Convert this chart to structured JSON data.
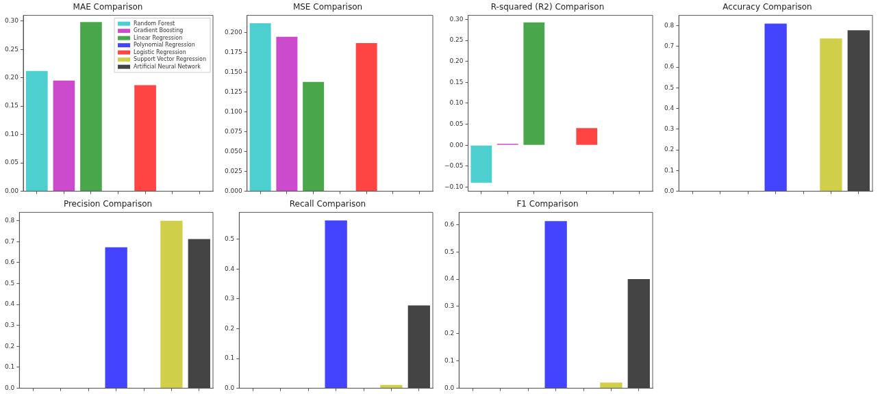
{
  "chart_data": [
    {
      "type": "bar",
      "title": "MAE Comparison",
      "categories": [
        null,
        null,
        null,
        null,
        null,
        null,
        null
      ],
      "legend": "top right",
      "tick_labels": "y",
      "ylim": [
        0,
        0.31
      ],
      "yticks": [
        {
          "value": 0,
          "label": "0.00"
        },
        0.05,
        {
          "value": 0.1,
          "label": "0.10"
        },
        0.15,
        {
          "value": 0.2,
          "label": "0.20"
        },
        0.25,
        {
          "value": 0.3,
          "label": "0.30"
        }
      ],
      "series": [
        {
          "name": "Random Forest",
          "color": "#4dcfcf",
          "values": [
            0.212,
            null,
            null,
            null,
            null,
            null,
            null
          ]
        },
        {
          "name": "Gradient Boosting",
          "color": "#cc4bcc",
          "values": [
            null,
            0.195,
            null,
            null,
            null,
            null,
            null
          ]
        },
        {
          "name": "Linear Regression",
          "color": "#4aa64a",
          "values": [
            null,
            null,
            0.298,
            null,
            null,
            null,
            null
          ]
        },
        {
          "name": "Polynomial Regression",
          "color": "#4444ff",
          "values": [
            null,
            null,
            null,
            null,
            null,
            null,
            null
          ]
        },
        {
          "name": "Logistic Regression",
          "color": "#ff4444",
          "values": [
            null,
            null,
            null,
            null,
            0.187,
            null,
            null
          ]
        },
        {
          "name": "Support Vector Regression",
          "color": "#d0cf4a",
          "values": [
            null,
            null,
            null,
            null,
            null,
            null,
            null
          ]
        },
        {
          "name": "Artificial Neural Network",
          "color": "#444444",
          "values": [
            null,
            null,
            null,
            null,
            null,
            null,
            null
          ]
        }
      ]
    },
    {
      "type": "bar",
      "title": "MSE Comparison",
      "categories": [
        null,
        null,
        null,
        null,
        null,
        null,
        null
      ],
      "tick_labels": "y",
      "ylim": [
        0,
        0.222
      ],
      "yticks": [
        {
          "value": 0,
          "label": "0.000"
        },
        0.025,
        {
          "value": 0.05,
          "label": "0.050"
        },
        0.075,
        {
          "value": 0.1,
          "label": "0.100"
        },
        0.125,
        {
          "value": 0.15,
          "label": "0.150"
        },
        0.175,
        {
          "value": 0.2,
          "label": "0.200"
        }
      ],
      "values": [
        0.212,
        0.195,
        0.138,
        null,
        0.187,
        null,
        null
      ],
      "colors": [
        "#4dcfcf",
        "#cc4bcc",
        "#4aa64a",
        "#4444ff",
        "#ff4444",
        "#d0cf4a",
        "#444444"
      ]
    },
    {
      "type": "bar",
      "title": "R-squared (R2) Comparison",
      "categories": [
        null,
        null,
        null,
        null,
        null,
        null,
        null
      ],
      "tick_labels": "y",
      "ylim": [
        -0.11,
        0.31
      ],
      "yticks": [
        {
          "value": -0.1,
          "label": "−0.10"
        },
        {
          "value": -0.05,
          "label": "−0.05"
        },
        {
          "value": 0,
          "label": "0.00"
        },
        0.05,
        {
          "value": 0.1,
          "label": "0.10"
        },
        0.15,
        {
          "value": 0.2,
          "label": "0.20"
        },
        0.25,
        {
          "value": 0.3,
          "label": "0.30"
        }
      ],
      "values": [
        -0.09,
        0.001,
        0.293,
        null,
        0.041,
        null,
        null
      ],
      "colors": [
        "#4dcfcf",
        "#cc4bcc",
        "#4aa64a",
        "#4444ff",
        "#ff4444",
        "#d0cf4a",
        "#444444"
      ]
    },
    {
      "type": "bar",
      "title": "Accuracy Comparison",
      "categories": [
        null,
        null,
        null,
        null,
        null,
        null,
        null
      ],
      "tick_labels": "y",
      "ylim": [
        0,
        0.85
      ],
      "yticks": [
        {
          "value": 0,
          "label": "0.0"
        },
        0.1,
        0.2,
        0.3,
        0.4,
        0.5,
        0.6,
        0.7,
        0.8
      ],
      "values": [
        null,
        null,
        null,
        0.81,
        null,
        0.738,
        0.778
      ],
      "colors": [
        "#4dcfcf",
        "#cc4bcc",
        "#4aa64a",
        "#4444ff",
        "#ff4444",
        "#d0cf4a",
        "#444444"
      ]
    },
    {
      "type": "bar",
      "title": "Precision Comparison",
      "categories": [
        null,
        null,
        null,
        null,
        null,
        null,
        null
      ],
      "tick_labels": "y",
      "ylim": [
        0,
        0.84
      ],
      "yticks": [
        {
          "value": 0,
          "label": "0.0"
        },
        0.1,
        0.2,
        0.3,
        0.4,
        0.5,
        0.6,
        0.7,
        0.8
      ],
      "values": [
        null,
        null,
        null,
        0.673,
        null,
        0.8,
        0.712
      ],
      "colors": [
        "#4dcfcf",
        "#cc4bcc",
        "#4aa64a",
        "#4444ff",
        "#ff4444",
        "#d0cf4a",
        "#444444"
      ]
    },
    {
      "type": "bar",
      "title": "Recall Comparison",
      "categories": [
        null,
        null,
        null,
        null,
        null,
        null,
        null
      ],
      "tick_labels": "y",
      "ylim": [
        0,
        0.59
      ],
      "yticks": [
        {
          "value": 0,
          "label": "0.0"
        },
        0.1,
        0.2,
        0.3,
        0.4,
        0.5
      ],
      "values": [
        null,
        null,
        null,
        0.563,
        null,
        0.011,
        0.278
      ],
      "colors": [
        "#4dcfcf",
        "#cc4bcc",
        "#4aa64a",
        "#4444ff",
        "#ff4444",
        "#d0cf4a",
        "#444444"
      ]
    },
    {
      "type": "bar",
      "title": "F1 Comparison",
      "categories": [
        null,
        null,
        null,
        null,
        null,
        null,
        null
      ],
      "tick_labels": "y",
      "ylim": [
        0,
        0.645
      ],
      "yticks": [
        {
          "value": 0,
          "label": "0.0"
        },
        0.1,
        0.2,
        0.3,
        0.4,
        0.5,
        0.6
      ],
      "values": [
        null,
        null,
        null,
        0.613,
        null,
        0.021,
        0.4
      ],
      "colors": [
        "#4dcfcf",
        "#cc4bcc",
        "#4aa64a",
        "#4444ff",
        "#ff4444",
        "#d0cf4a",
        "#444444"
      ]
    }
  ]
}
